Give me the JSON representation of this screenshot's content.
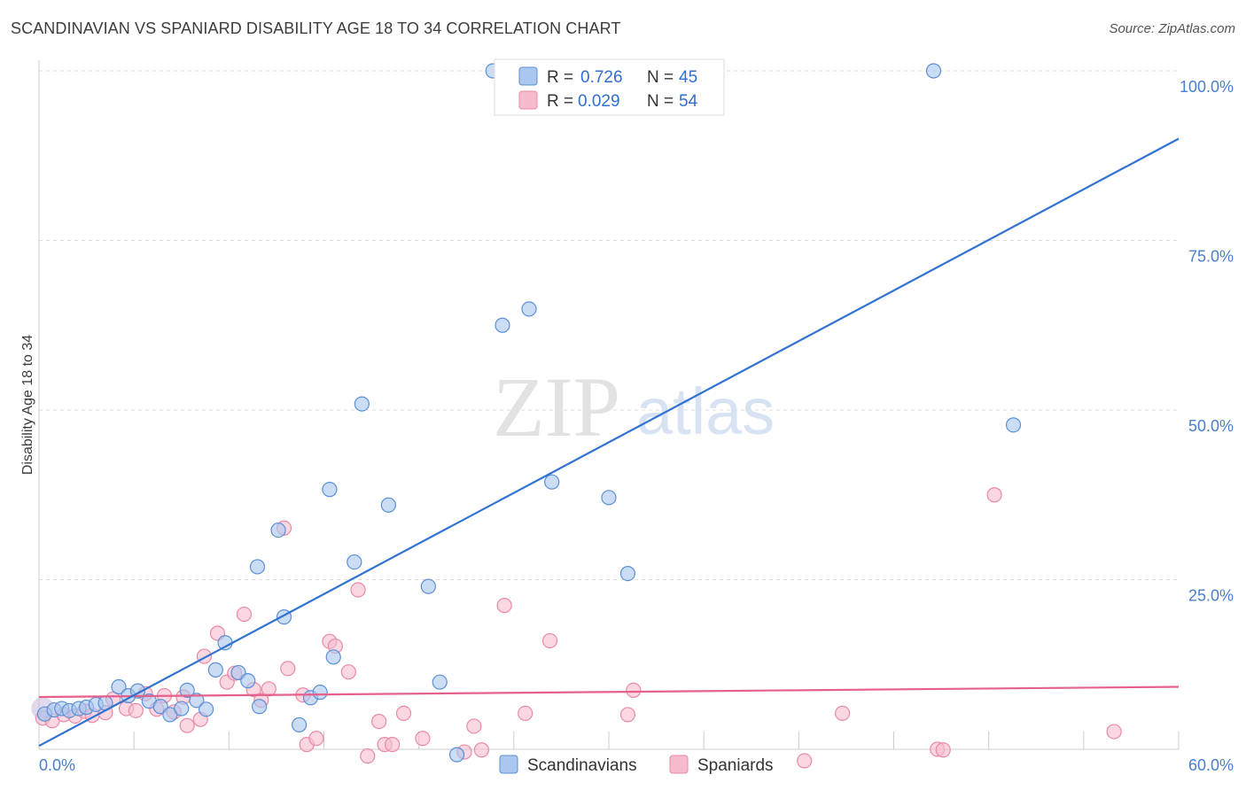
{
  "page": {
    "title": "SCANDINAVIAN VS SPANIARD DISABILITY AGE 18 TO 34 CORRELATION CHART",
    "source": "Source: ZipAtlas.com",
    "watermark_zip": "ZIP",
    "watermark_atlas": "atlas"
  },
  "colors": {
    "blue_fill": "#a9c7ef",
    "blue_stroke": "#5b8fd6",
    "blue_line": "#2f72d0",
    "pink_fill": "#f6bccd",
    "pink_stroke": "#e88aa6",
    "pink_line": "#e5608a",
    "grid": "#dddddd",
    "axis_text": "#4a7fc9"
  },
  "legend": {
    "series": [
      {
        "r_label": "R = ",
        "r_value": "0.726",
        "n_label": "N = ",
        "n_value": "45"
      },
      {
        "r_label": "R = ",
        "r_value": "0.029",
        "n_label": "N = ",
        "n_value": "54"
      }
    ]
  },
  "bottom_legend": [
    "Scandinavians",
    "Spaniards"
  ],
  "chart_data": {
    "type": "scatter",
    "title": "SCANDINAVIAN VS SPANIARD DISABILITY AGE 18 TO 34 CORRELATION CHART",
    "xlabel": "",
    "ylabel": "Disability Age 18 to 34",
    "xlim": [
      0,
      60
    ],
    "ylim": [
      0,
      100
    ],
    "x_tick_labels": [
      "0.0%",
      "60.0%"
    ],
    "y_tick_values": [
      25,
      50,
      75,
      100
    ],
    "y_tick_labels": [
      "25.0%",
      "50.0%",
      "75.0%",
      "100.0%"
    ],
    "series": [
      {
        "name": "Scandinavians",
        "r": 0.726,
        "n": 45,
        "trend": {
          "x": [
            0,
            60
          ],
          "y": [
            0.5,
            90.0
          ]
        },
        "points": [
          {
            "x": 0.3,
            "y": 5.2
          },
          {
            "x": 0.8,
            "y": 5.8
          },
          {
            "x": 1.2,
            "y": 6.0
          },
          {
            "x": 1.6,
            "y": 5.7
          },
          {
            "x": 2.1,
            "y": 6.0
          },
          {
            "x": 2.5,
            "y": 6.2
          },
          {
            "x": 3.0,
            "y": 6.6
          },
          {
            "x": 3.5,
            "y": 6.8
          },
          {
            "x": 4.2,
            "y": 9.2
          },
          {
            "x": 4.7,
            "y": 7.9
          },
          {
            "x": 5.2,
            "y": 8.6
          },
          {
            "x": 5.8,
            "y": 7.1
          },
          {
            "x": 6.4,
            "y": 6.3
          },
          {
            "x": 6.9,
            "y": 5.1
          },
          {
            "x": 7.5,
            "y": 6.0
          },
          {
            "x": 7.8,
            "y": 8.7
          },
          {
            "x": 8.3,
            "y": 7.2
          },
          {
            "x": 8.8,
            "y": 5.9
          },
          {
            "x": 9.3,
            "y": 11.7
          },
          {
            "x": 9.8,
            "y": 15.7
          },
          {
            "x": 10.5,
            "y": 11.3
          },
          {
            "x": 11.0,
            "y": 10.1
          },
          {
            "x": 11.6,
            "y": 6.3
          },
          {
            "x": 11.5,
            "y": 26.9
          },
          {
            "x": 12.6,
            "y": 32.3
          },
          {
            "x": 12.9,
            "y": 19.5
          },
          {
            "x": 13.7,
            "y": 3.6
          },
          {
            "x": 14.3,
            "y": 7.6
          },
          {
            "x": 14.8,
            "y": 8.4
          },
          {
            "x": 15.5,
            "y": 13.6
          },
          {
            "x": 15.3,
            "y": 38.3
          },
          {
            "x": 16.6,
            "y": 27.6
          },
          {
            "x": 17.0,
            "y": 50.9
          },
          {
            "x": 18.4,
            "y": 36.0
          },
          {
            "x": 20.5,
            "y": 24.0
          },
          {
            "x": 21.1,
            "y": 9.9
          },
          {
            "x": 22.0,
            "y": -0.8
          },
          {
            "x": 23.9,
            "y": 100.0
          },
          {
            "x": 24.4,
            "y": 62.5
          },
          {
            "x": 25.8,
            "y": 64.9
          },
          {
            "x": 27.0,
            "y": 39.4
          },
          {
            "x": 30.0,
            "y": 37.1
          },
          {
            "x": 31.0,
            "y": 25.9
          },
          {
            "x": 47.1,
            "y": 100.0
          },
          {
            "x": 51.3,
            "y": 47.8
          }
        ]
      },
      {
        "name": "Spaniards",
        "r": 0.029,
        "n": 54,
        "trend": {
          "x": [
            0,
            60
          ],
          "y": [
            7.7,
            9.2
          ]
        },
        "points": [
          {
            "x": 0.2,
            "y": 4.6
          },
          {
            "x": 0.7,
            "y": 4.2
          },
          {
            "x": 1.3,
            "y": 5.1
          },
          {
            "x": 1.9,
            "y": 4.9
          },
          {
            "x": 2.4,
            "y": 5.6
          },
          {
            "x": 2.8,
            "y": 5.0
          },
          {
            "x": 3.5,
            "y": 5.4
          },
          {
            "x": 3.9,
            "y": 7.4
          },
          {
            "x": 4.6,
            "y": 6.0
          },
          {
            "x": 5.1,
            "y": 5.7
          },
          {
            "x": 5.6,
            "y": 8.2
          },
          {
            "x": 6.2,
            "y": 5.9
          },
          {
            "x": 6.6,
            "y": 7.9
          },
          {
            "x": 7.1,
            "y": 5.5
          },
          {
            "x": 7.6,
            "y": 7.7
          },
          {
            "x": 7.8,
            "y": 3.5
          },
          {
            "x": 8.5,
            "y": 4.4
          },
          {
            "x": 8.7,
            "y": 13.7
          },
          {
            "x": 9.4,
            "y": 17.1
          },
          {
            "x": 9.9,
            "y": 9.9
          },
          {
            "x": 10.3,
            "y": 11.2
          },
          {
            "x": 10.8,
            "y": 19.9
          },
          {
            "x": 11.3,
            "y": 8.8
          },
          {
            "x": 11.7,
            "y": 7.2
          },
          {
            "x": 12.1,
            "y": 8.9
          },
          {
            "x": 12.9,
            "y": 32.6
          },
          {
            "x": 13.1,
            "y": 11.9
          },
          {
            "x": 13.9,
            "y": 8.0
          },
          {
            "x": 14.1,
            "y": 0.7
          },
          {
            "x": 14.6,
            "y": 1.6
          },
          {
            "x": 15.3,
            "y": 15.9
          },
          {
            "x": 15.6,
            "y": 15.2
          },
          {
            "x": 16.3,
            "y": 11.4
          },
          {
            "x": 16.8,
            "y": 23.5
          },
          {
            "x": 17.3,
            "y": -1.0
          },
          {
            "x": 17.9,
            "y": 4.1
          },
          {
            "x": 18.2,
            "y": 0.7
          },
          {
            "x": 18.6,
            "y": 0.7
          },
          {
            "x": 19.2,
            "y": 5.3
          },
          {
            "x": 20.2,
            "y": 1.6
          },
          {
            "x": 22.4,
            "y": -0.4
          },
          {
            "x": 22.9,
            "y": 3.4
          },
          {
            "x": 23.3,
            "y": -0.1
          },
          {
            "x": 24.5,
            "y": 21.2
          },
          {
            "x": 25.6,
            "y": 5.3
          },
          {
            "x": 26.9,
            "y": 16.0
          },
          {
            "x": 31.0,
            "y": 5.1
          },
          {
            "x": 31.3,
            "y": 8.7
          },
          {
            "x": 40.3,
            "y": -1.7
          },
          {
            "x": 42.3,
            "y": 5.3
          },
          {
            "x": 47.3,
            "y": 0.0
          },
          {
            "x": 47.6,
            "y": -0.1
          },
          {
            "x": 50.3,
            "y": 37.5
          },
          {
            "x": 56.6,
            "y": 2.6
          }
        ]
      }
    ]
  }
}
